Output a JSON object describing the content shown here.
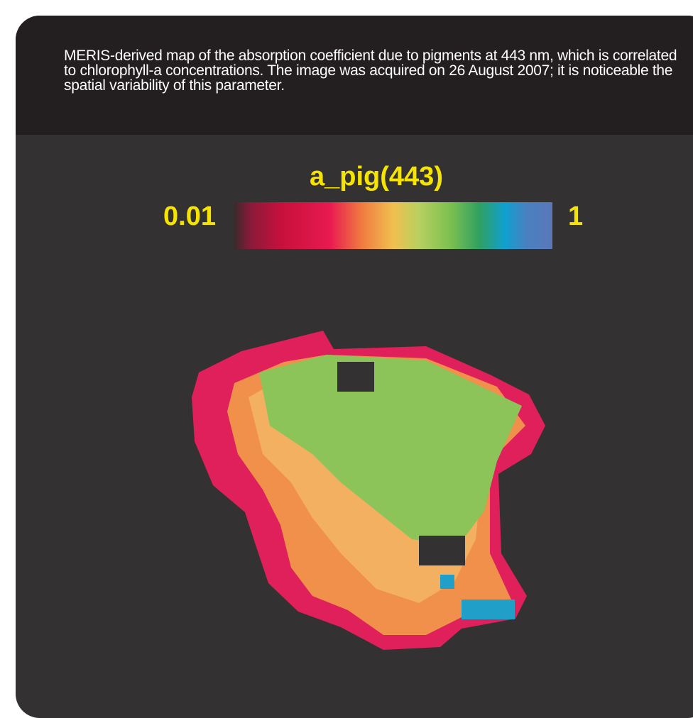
{
  "caption": "MERIS-derived map of the absorption coefficient due to pigments at 443 nm, which is correlated to chlorophyll-a concentrations. The image was acquired on 26 August 2007; it is noticeable the spatial variability of this parameter.",
  "legend": {
    "title": "a_pig(443)",
    "min_label": "0.01",
    "max_label": "1"
  }
}
